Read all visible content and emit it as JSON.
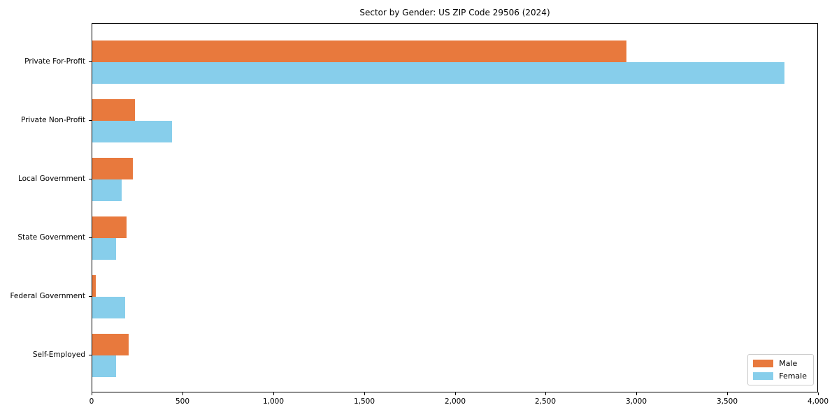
{
  "chart_data": {
    "type": "bar",
    "orientation": "horizontal",
    "title": "Sector by Gender: US ZIP Code 29506 (2024)",
    "categories": [
      "Private For-Profit",
      "Private Non-Profit",
      "Local Government",
      "State Government",
      "Federal Government",
      "Self-Employed"
    ],
    "series": [
      {
        "name": "Male",
        "color": "#e8793d",
        "values": [
          2940,
          235,
          225,
          190,
          20,
          200
        ]
      },
      {
        "name": "Female",
        "color": "#87ceeb",
        "values": [
          3810,
          440,
          160,
          130,
          180,
          130
        ]
      }
    ],
    "xlabel": "",
    "ylabel": "",
    "xlim": [
      0,
      4000
    ],
    "xticks": [
      0,
      500,
      1000,
      1500,
      2000,
      2500,
      3000,
      3500,
      4000
    ],
    "xtick_labels": [
      "0",
      "500",
      "1,000",
      "1,500",
      "2,000",
      "2,500",
      "3,000",
      "3,500",
      "4,000"
    ],
    "grid": false,
    "legend_position": "lower right"
  }
}
